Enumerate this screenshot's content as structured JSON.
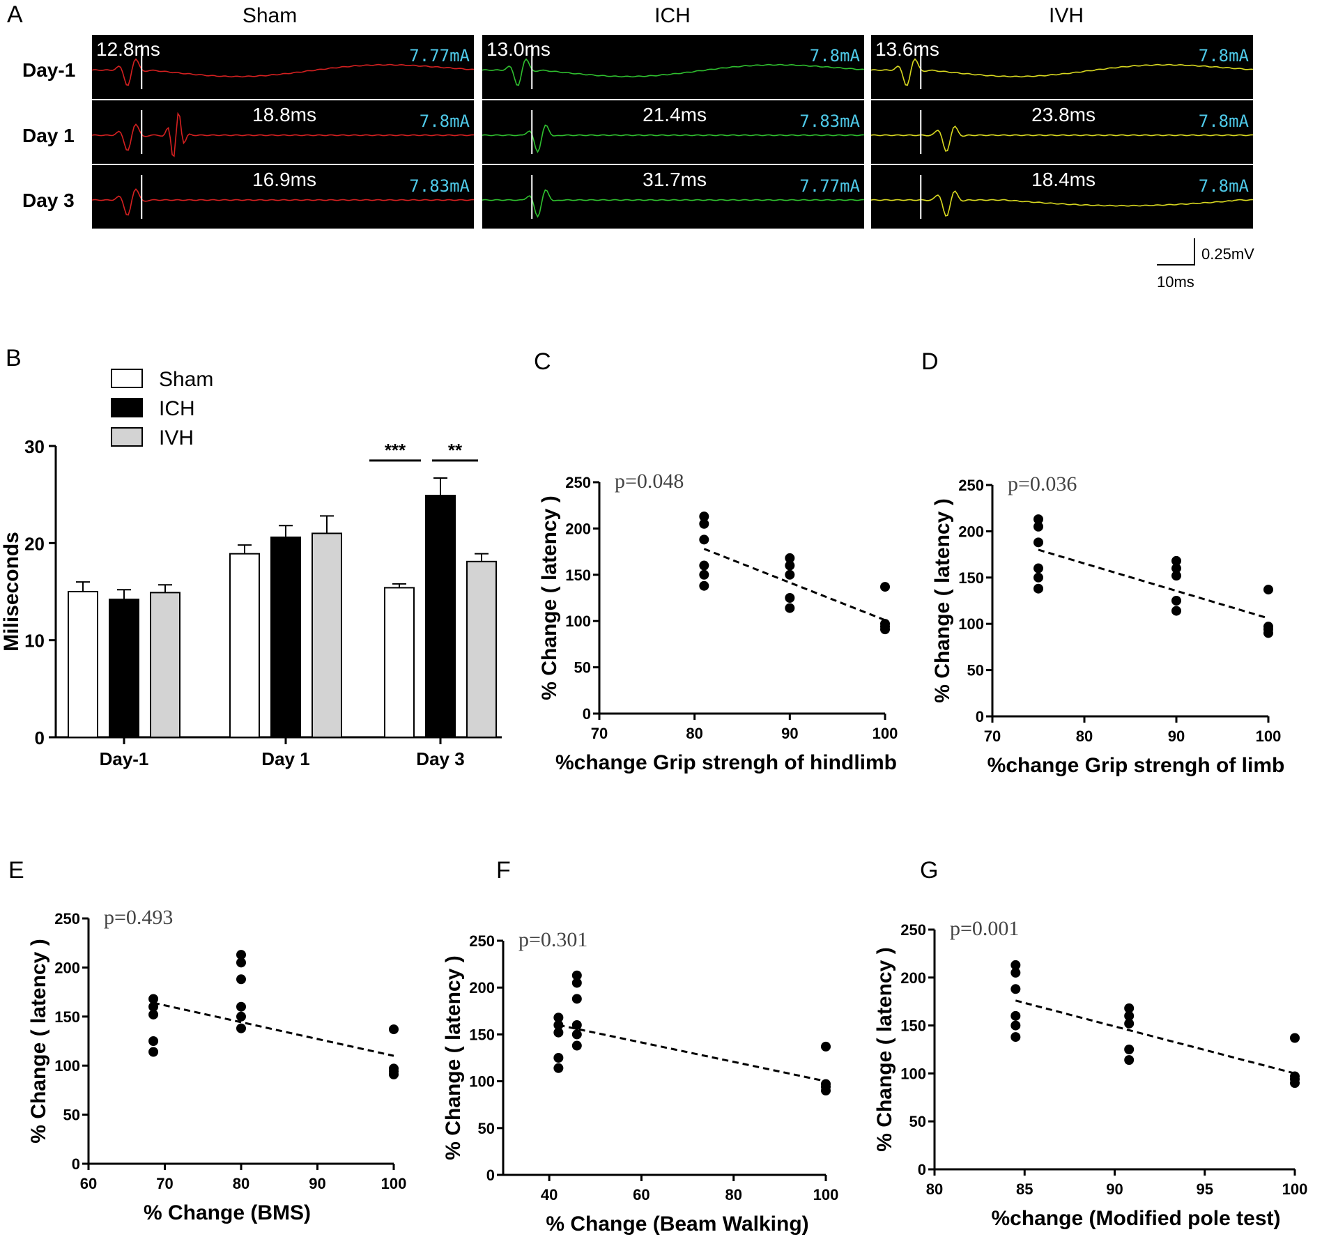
{
  "panel_labels": {
    "A": "A",
    "B": "B",
    "C": "C",
    "D": "D",
    "E": "E",
    "F": "F",
    "G": "G"
  },
  "emg": {
    "columns": [
      {
        "title": "Sham",
        "color": "#d42020"
      },
      {
        "title": "ICH",
        "color": "#2fbf2f"
      },
      {
        "title": "IVH",
        "color": "#d8d820"
      }
    ],
    "rows": [
      "Day-1",
      "Day 1",
      "Day 3"
    ],
    "latency_labels": [
      [
        "12.8ms",
        "13.0ms",
        "13.6ms"
      ],
      [
        "18.8ms",
        "21.4ms",
        "23.8ms"
      ],
      [
        "16.9ms",
        "31.7ms",
        "18.4ms"
      ]
    ],
    "ma_labels": [
      [
        "7.77mA",
        "7.8mA",
        "7.8mA"
      ],
      [
        "7.8mA",
        "7.83mA",
        "7.8mA"
      ],
      [
        "7.83mA",
        "7.77mA",
        "7.8mA"
      ]
    ],
    "scale_bar": {
      "voltage": "0.25mV",
      "time": "10ms"
    }
  },
  "chart_data": [
    {
      "id": "B",
      "type": "bar",
      "categories": [
        "Day-1",
        "Day 1",
        "Day 3"
      ],
      "series": [
        {
          "name": "Sham",
          "color": "#ffffff",
          "values": [
            15.0,
            18.9,
            15.4
          ],
          "errors": [
            1.0,
            0.9,
            0.4
          ]
        },
        {
          "name": "ICH",
          "color": "#000000",
          "values": [
            14.2,
            20.6,
            24.9
          ],
          "errors": [
            1.0,
            1.2,
            1.8
          ]
        },
        {
          "name": "IVH",
          "color": "#d3d3d3",
          "values": [
            14.9,
            21.0,
            18.1
          ],
          "errors": [
            0.8,
            1.8,
            0.8
          ]
        }
      ],
      "ylabel": "Miliseconds",
      "ylim": [
        0,
        30
      ],
      "yticks": [
        0,
        10,
        20,
        30
      ],
      "legend": "top-left",
      "annotations": [
        {
          "text": "***"
        },
        {
          "text": "**"
        }
      ]
    },
    {
      "id": "C",
      "type": "scatter",
      "xlabel": "%change Grip strengh of hindlimb",
      "ylabel": "% Change ( latency )",
      "xlim": [
        70,
        100
      ],
      "xticks": [
        70,
        80,
        90,
        100
      ],
      "ylim": [
        0,
        250
      ],
      "yticks": [
        0,
        50,
        100,
        150,
        200,
        250
      ],
      "p_text": "p=0.048",
      "points": [
        [
          81,
          213
        ],
        [
          81,
          205
        ],
        [
          81,
          188
        ],
        [
          81,
          160
        ],
        [
          81,
          150
        ],
        [
          81,
          138
        ],
        [
          90,
          168
        ],
        [
          90,
          160
        ],
        [
          90,
          150
        ],
        [
          90,
          125
        ],
        [
          90,
          114
        ],
        [
          100,
          137
        ],
        [
          100,
          97
        ],
        [
          100,
          94
        ],
        [
          100,
          91
        ]
      ],
      "fit": [
        [
          81,
          178
        ],
        [
          100,
          101
        ]
      ]
    },
    {
      "id": "D",
      "type": "scatter",
      "xlabel": "%change Grip strengh of limb",
      "ylabel": "% Change ( latency )",
      "xlim": [
        70,
        100
      ],
      "xticks": [
        70,
        80,
        90,
        100
      ],
      "ylim": [
        0,
        250
      ],
      "yticks": [
        0,
        50,
        100,
        150,
        200,
        250
      ],
      "p_text": "p=0.036",
      "points": [
        [
          75,
          213
        ],
        [
          75,
          205
        ],
        [
          75,
          188
        ],
        [
          75,
          160
        ],
        [
          75,
          150
        ],
        [
          75,
          138
        ],
        [
          90,
          168
        ],
        [
          90,
          160
        ],
        [
          90,
          152
        ],
        [
          90,
          125
        ],
        [
          90,
          114
        ],
        [
          100,
          137
        ],
        [
          100,
          97
        ],
        [
          100,
          94
        ],
        [
          100,
          90
        ]
      ],
      "fit": [
        [
          75,
          180
        ],
        [
          100,
          106
        ]
      ]
    },
    {
      "id": "E",
      "type": "scatter",
      "xlabel": "% Change (BMS)",
      "ylabel": "% Change ( latency )",
      "xlim": [
        60,
        100
      ],
      "xticks": [
        60,
        70,
        80,
        90,
        100
      ],
      "ylim": [
        0,
        250
      ],
      "yticks": [
        0,
        50,
        100,
        150,
        200,
        250
      ],
      "p_text": "p=0.493",
      "points": [
        [
          68.5,
          168
        ],
        [
          68.5,
          160
        ],
        [
          68.5,
          152
        ],
        [
          68.5,
          125
        ],
        [
          68.5,
          114
        ],
        [
          80,
          213
        ],
        [
          80,
          205
        ],
        [
          80,
          188
        ],
        [
          80,
          160
        ],
        [
          80,
          150
        ],
        [
          80,
          138
        ],
        [
          100,
          137
        ],
        [
          100,
          97
        ],
        [
          100,
          94
        ],
        [
          100,
          91
        ]
      ],
      "fit": [
        [
          68.5,
          164
        ],
        [
          100,
          110
        ]
      ]
    },
    {
      "id": "F",
      "type": "scatter",
      "xlabel": "% Change (Beam Walking)",
      "ylabel": "% Change ( latency )",
      "xlim": [
        30,
        100
      ],
      "xticks": [
        40,
        60,
        80,
        100
      ],
      "ylim": [
        0,
        250
      ],
      "yticks": [
        0,
        50,
        100,
        150,
        200,
        250
      ],
      "p_text": "p=0.301",
      "points": [
        [
          42,
          168
        ],
        [
          42,
          160
        ],
        [
          42,
          152
        ],
        [
          42,
          125
        ],
        [
          42,
          114
        ],
        [
          46,
          213
        ],
        [
          46,
          205
        ],
        [
          46,
          188
        ],
        [
          46,
          160
        ],
        [
          46,
          150
        ],
        [
          46,
          138
        ],
        [
          100,
          137
        ],
        [
          100,
          97
        ],
        [
          100,
          94
        ],
        [
          100,
          90
        ]
      ],
      "fit": [
        [
          42,
          160
        ],
        [
          100,
          100
        ]
      ]
    },
    {
      "id": "G",
      "type": "scatter",
      "xlabel": "%change (Modified pole test)",
      "ylabel": "% Change ( latency )",
      "xlim": [
        80,
        100
      ],
      "xticks": [
        80,
        85,
        90,
        95,
        100
      ],
      "ylim": [
        0,
        250
      ],
      "yticks": [
        0,
        50,
        100,
        150,
        200,
        250
      ],
      "p_text": "p=0.001",
      "points": [
        [
          84.5,
          213
        ],
        [
          84.5,
          205
        ],
        [
          84.5,
          188
        ],
        [
          84.5,
          160
        ],
        [
          84.5,
          150
        ],
        [
          84.5,
          138
        ],
        [
          90.8,
          168
        ],
        [
          90.8,
          160
        ],
        [
          90.8,
          152
        ],
        [
          90.8,
          125
        ],
        [
          90.8,
          114
        ],
        [
          100,
          137
        ],
        [
          100,
          97
        ],
        [
          100,
          94
        ],
        [
          100,
          90
        ]
      ],
      "fit": [
        [
          84.5,
          176
        ],
        [
          100,
          100
        ]
      ]
    }
  ]
}
